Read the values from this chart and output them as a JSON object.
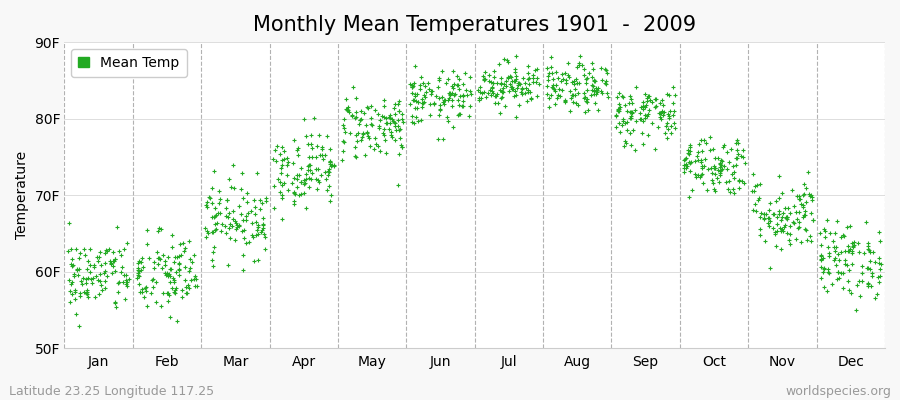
{
  "title": "Monthly Mean Temperatures 1901  -  2009",
  "ylabel": "Temperature",
  "ylim": [
    50,
    90
  ],
  "yticks": [
    50,
    60,
    70,
    80,
    90
  ],
  "ytick_labels": [
    "50F",
    "60F",
    "70F",
    "80F",
    "90F"
  ],
  "months": [
    "Jan",
    "Feb",
    "Mar",
    "Apr",
    "May",
    "Jun",
    "Jul",
    "Aug",
    "Sep",
    "Oct",
    "Nov",
    "Dec"
  ],
  "monthly_means": [
    59.5,
    59.5,
    67.0,
    73.5,
    79.0,
    82.5,
    84.5,
    84.0,
    80.5,
    74.0,
    67.5,
    61.5
  ],
  "monthly_stds": [
    2.5,
    2.8,
    2.5,
    2.5,
    2.2,
    1.8,
    1.5,
    1.6,
    2.0,
    2.0,
    2.5,
    2.5
  ],
  "n_years": 109,
  "dot_color": "#22aa22",
  "dot_size": 8,
  "background_color": "#f8f8f8",
  "plot_bg_color": "#ffffff",
  "title_fontsize": 15,
  "axis_label_fontsize": 10,
  "tick_fontsize": 10,
  "footer_left": "Latitude 23.25 Longitude 117.25",
  "footer_right": "worldspecies.org",
  "footer_fontsize": 9,
  "legend_label": "Mean Temp",
  "dashed_line_color": "#aaaaaa"
}
